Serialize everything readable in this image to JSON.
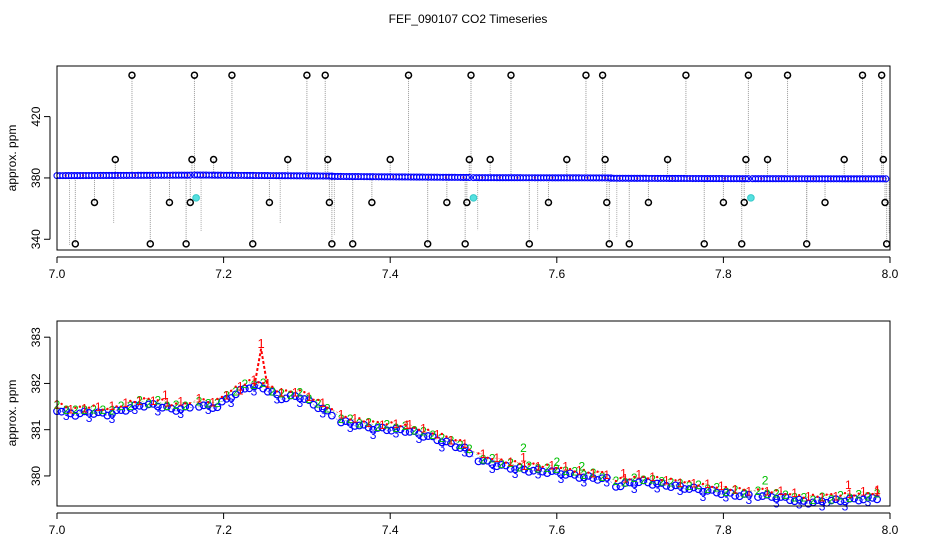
{
  "figure": {
    "title": "FEF_090107  CO2 Timeseries"
  },
  "chart_data": [
    {
      "type": "scatter",
      "ylabel": "approx. ppm",
      "xlim": [
        7.0,
        8.0
      ],
      "ylim": [
        333,
        453
      ],
      "xticks": [
        7.0,
        7.2,
        7.4,
        7.6,
        7.8,
        8.0
      ],
      "xtick_labels": [
        "7.0",
        "7.2",
        "7.4",
        "7.6",
        "7.8",
        "8.0"
      ],
      "yticks": [
        340,
        380,
        420
      ],
      "ytick_labels": [
        "340",
        "380",
        "420"
      ],
      "grid": false,
      "series_color": "#0000ff",
      "spike_color": "#000000",
      "cal_color": "#55e0e0",
      "segments": [
        {
          "x0": 7.0,
          "x1": 7.16,
          "y0": 381.5,
          "y1": 381.8
        },
        {
          "x0": 7.165,
          "x1": 7.33,
          "y0": 381.9,
          "y1": 381.2
        },
        {
          "x0": 7.33,
          "x1": 7.495,
          "y0": 381.0,
          "y1": 380.3
        },
        {
          "x0": 7.5,
          "x1": 7.665,
          "y0": 380.2,
          "y1": 380.0
        },
        {
          "x0": 7.665,
          "x1": 7.83,
          "y0": 379.8,
          "y1": 379.5
        },
        {
          "x0": 7.835,
          "x1": 7.995,
          "y0": 379.5,
          "y1": 379.4
        }
      ],
      "spikes": [
        {
          "x": 7.022,
          "y": 337
        },
        {
          "x": 7.045,
          "y": 364
        },
        {
          "x": 7.07,
          "y": 392
        },
        {
          "x": 7.09,
          "y": 447
        },
        {
          "x": 7.112,
          "y": 337
        },
        {
          "x": 7.135,
          "y": 364
        },
        {
          "x": 7.155,
          "y": 337
        },
        {
          "x": 7.16,
          "y": 364
        },
        {
          "x": 7.162,
          "y": 392
        },
        {
          "x": 7.165,
          "y": 447
        },
        {
          "x": 7.188,
          "y": 392
        },
        {
          "x": 7.21,
          "y": 447
        },
        {
          "x": 7.235,
          "y": 337
        },
        {
          "x": 7.255,
          "y": 364
        },
        {
          "x": 7.277,
          "y": 392
        },
        {
          "x": 7.3,
          "y": 447
        },
        {
          "x": 7.322,
          "y": 447
        },
        {
          "x": 7.325,
          "y": 392
        },
        {
          "x": 7.327,
          "y": 364
        },
        {
          "x": 7.33,
          "y": 337
        },
        {
          "x": 7.355,
          "y": 337
        },
        {
          "x": 7.378,
          "y": 364
        },
        {
          "x": 7.4,
          "y": 392
        },
        {
          "x": 7.422,
          "y": 447
        },
        {
          "x": 7.445,
          "y": 337
        },
        {
          "x": 7.468,
          "y": 364
        },
        {
          "x": 7.49,
          "y": 337
        },
        {
          "x": 7.492,
          "y": 364
        },
        {
          "x": 7.495,
          "y": 392
        },
        {
          "x": 7.497,
          "y": 447
        },
        {
          "x": 7.52,
          "y": 392
        },
        {
          "x": 7.545,
          "y": 447
        },
        {
          "x": 7.567,
          "y": 337
        },
        {
          "x": 7.59,
          "y": 364
        },
        {
          "x": 7.612,
          "y": 392
        },
        {
          "x": 7.635,
          "y": 447
        },
        {
          "x": 7.655,
          "y": 447
        },
        {
          "x": 7.658,
          "y": 392
        },
        {
          "x": 7.66,
          "y": 364
        },
        {
          "x": 7.663,
          "y": 337
        },
        {
          "x": 7.687,
          "y": 337
        },
        {
          "x": 7.71,
          "y": 364
        },
        {
          "x": 7.733,
          "y": 392
        },
        {
          "x": 7.755,
          "y": 447
        },
        {
          "x": 7.777,
          "y": 337
        },
        {
          "x": 7.8,
          "y": 364
        },
        {
          "x": 7.822,
          "y": 337
        },
        {
          "x": 7.825,
          "y": 364
        },
        {
          "x": 7.827,
          "y": 392
        },
        {
          "x": 7.83,
          "y": 447
        },
        {
          "x": 7.853,
          "y": 392
        },
        {
          "x": 7.877,
          "y": 447
        },
        {
          "x": 7.9,
          "y": 337
        },
        {
          "x": 7.922,
          "y": 364
        },
        {
          "x": 7.945,
          "y": 392
        },
        {
          "x": 7.967,
          "y": 447
        },
        {
          "x": 7.99,
          "y": 447
        },
        {
          "x": 7.992,
          "y": 392
        },
        {
          "x": 7.994,
          "y": 364
        },
        {
          "x": 7.996,
          "y": 337
        }
      ],
      "calibration_points": [
        {
          "x": 7.167,
          "y": 367
        },
        {
          "x": 7.5,
          "y": 367
        },
        {
          "x": 7.833,
          "y": 367
        }
      ],
      "faint_spikes": [
        {
          "x": 7.015,
          "y": 336
        },
        {
          "x": 7.068,
          "y": 350
        },
        {
          "x": 7.173,
          "y": 345
        },
        {
          "x": 7.268,
          "y": 350
        },
        {
          "x": 7.333,
          "y": 343
        },
        {
          "x": 7.505,
          "y": 346
        },
        {
          "x": 7.577,
          "y": 346
        },
        {
          "x": 7.672,
          "y": 341
        },
        {
          "x": 7.9,
          "y": 341
        },
        {
          "x": 7.999,
          "y": 344
        }
      ]
    },
    {
      "type": "scatter",
      "ylabel": "approx. ppm",
      "xlim": [
        7.0,
        8.0
      ],
      "ylim": [
        379.35,
        383.35
      ],
      "xticks": [
        7.0,
        7.2,
        7.4,
        7.6,
        7.8,
        8.0
      ],
      "xtick_labels": [
        "7.0",
        "7.2",
        "7.4",
        "7.6",
        "7.8",
        "8.0"
      ],
      "yticks": [
        380,
        381,
        382,
        383
      ],
      "ytick_labels": [
        "380",
        "381",
        "382",
        "383"
      ],
      "grid": false,
      "series": [
        {
          "marker": "1",
          "color": "#ff0000"
        },
        {
          "marker": "2",
          "color": "#00c000"
        },
        {
          "marker": "3",
          "color": "#0000ff"
        }
      ],
      "anchors": [
        [
          7.0,
          381.45
        ],
        [
          7.02,
          381.35
        ],
        [
          7.04,
          381.4
        ],
        [
          7.06,
          381.35
        ],
        [
          7.08,
          381.45
        ],
        [
          7.1,
          381.55
        ],
        [
          7.12,
          381.55
        ],
        [
          7.14,
          381.45
        ],
        [
          7.16,
          381.5
        ],
        [
          7.17,
          381.55
        ],
        [
          7.19,
          381.5
        ],
        [
          7.21,
          381.75
        ],
        [
          7.23,
          381.95
        ],
        [
          7.245,
          381.95
        ],
        [
          7.27,
          381.7
        ],
        [
          7.29,
          381.75
        ],
        [
          7.33,
          381.35
        ],
        [
          7.34,
          381.2
        ],
        [
          7.38,
          381.05
        ],
        [
          7.42,
          381.0
        ],
        [
          7.45,
          380.85
        ],
        [
          7.49,
          380.6
        ],
        [
          7.5,
          380.4
        ],
        [
          7.53,
          380.25
        ],
        [
          7.56,
          380.15
        ],
        [
          7.6,
          380.1
        ],
        [
          7.63,
          380.0
        ],
        [
          7.66,
          379.95
        ],
        [
          7.67,
          379.8
        ],
        [
          7.7,
          379.9
        ],
        [
          7.74,
          379.8
        ],
        [
          7.78,
          379.7
        ],
        [
          7.82,
          379.6
        ],
        [
          7.84,
          379.6
        ],
        [
          7.87,
          379.55
        ],
        [
          7.9,
          379.45
        ],
        [
          7.95,
          379.5
        ],
        [
          7.985,
          379.55
        ]
      ],
      "spike": {
        "x": 7.245,
        "y": 382.85
      },
      "red_highlights": [
        {
          "x": 7.13,
          "y": 381.75
        },
        {
          "x": 7.22,
          "y": 381.85
        },
        {
          "x": 7.42,
          "y": 381.1
        },
        {
          "x": 7.56,
          "y": 380.4
        },
        {
          "x": 7.68,
          "y": 380.05
        },
        {
          "x": 7.95,
          "y": 379.8
        },
        {
          "x": 7.985,
          "y": 379.7
        }
      ],
      "green_highlights": [
        {
          "x": 7.56,
          "y": 380.6
        },
        {
          "x": 7.63,
          "y": 380.2
        },
        {
          "x": 7.85,
          "y": 379.9
        },
        {
          "x": 7.6,
          "y": 380.3
        }
      ]
    }
  ]
}
